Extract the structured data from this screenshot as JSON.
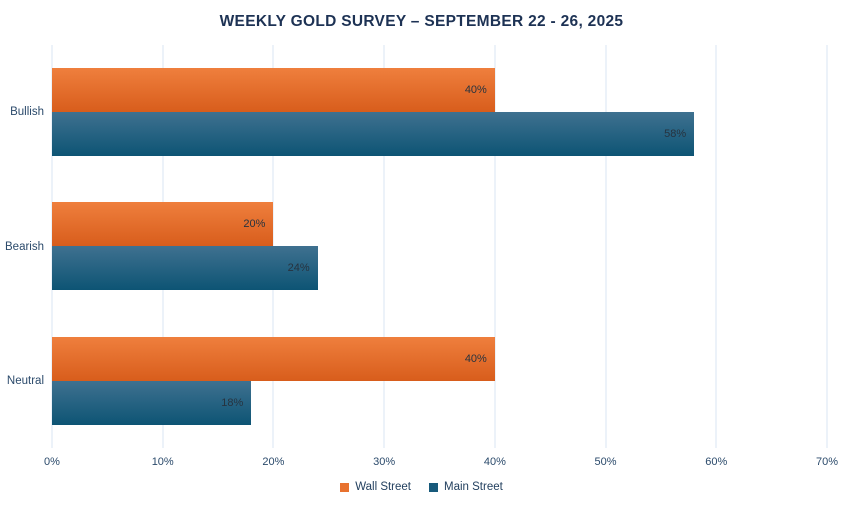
{
  "title": "WEEKLY GOLD SURVEY – SEPTEMBER 22 - 26, 2025",
  "colors": {
    "title_text": "#1D3254",
    "axis_text": "#2B4A6B",
    "bar_label_text": "#27333F",
    "gridline": "#D8E6F3",
    "background": "#FFFFFF",
    "wall_street_accent": "#E8722F",
    "main_street_accent": "#175A7B"
  },
  "chart_data": {
    "type": "bar",
    "orientation": "horizontal",
    "title": "WEEKLY GOLD SURVEY – SEPTEMBER 22 - 26, 2025",
    "xlabel": "",
    "ylabel": "",
    "categories": [
      "Bullish",
      "Bearish",
      "Neutral"
    ],
    "series": [
      {
        "name": "Wall Street",
        "values": [
          40,
          20,
          40
        ],
        "labels": [
          "40%",
          "20%",
          "40%"
        ],
        "color_top": "#EF7F3D",
        "color_bottom": "#D85D1C",
        "legend_color": "#E8722F"
      },
      {
        "name": "Main Street",
        "values": [
          58,
          24,
          18
        ],
        "labels": [
          "58%",
          "24%",
          "18%"
        ],
        "color_top": "#3F7190",
        "color_bottom": "#0D5474",
        "legend_color": "#175A7B"
      }
    ],
    "xlim": [
      0,
      70
    ],
    "x_ticks": [
      "0%",
      "10%",
      "20%",
      "30%",
      "40%",
      "50%",
      "60%",
      "70%"
    ],
    "grid": true,
    "data_labels": "inside-end",
    "legend_position": "bottom"
  }
}
